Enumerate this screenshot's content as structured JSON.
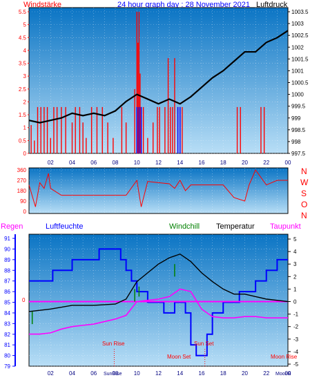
{
  "header": {
    "left_label": "Windstärke",
    "title": "24 hour graph day : 28 November 2021",
    "right_label": "Luftdruck"
  },
  "x_ticks": [
    "02",
    "04",
    "06",
    "08",
    "10",
    "12",
    "14",
    "16",
    "18",
    "20",
    "22",
    "00"
  ],
  "x_ticks_bottom": [
    "02",
    "04",
    "06",
    "08",
    "10",
    "12",
    "14",
    "16",
    "18",
    "20",
    "22",
    "00"
  ],
  "wind_dir_labels": [
    "N",
    "W",
    "S",
    "O",
    "N"
  ],
  "bottom_header": {
    "regen": "Regen",
    "luftfeuchte": "Luftfeuchte",
    "windchill": "Windchill",
    "temperatur": "Temperatur",
    "taupunkt": "Taupunkt"
  },
  "astro": {
    "sun_rise": "Sun Rise",
    "sun_set": "Sun Set",
    "moon_set": "Moon Set",
    "moon_rise": "Moon Rise",
    "sun_rise_time": "SunRise",
    "moon_tick": "MoonR",
    "rain_zero": "0"
  },
  "colors": {
    "plot_top": "#0a78c8",
    "plot_bottom": "#a9d6f2",
    "wind_bar": "#ff0000",
    "wind_gust": "#0000ff",
    "pressure": "#000000",
    "humidity": "#0000ff",
    "temperature": "#000000",
    "dewpoint": "#ff00ff",
    "windchill": "#008000",
    "axis_red": "#ff0000",
    "axis_blue": "#0000ff"
  },
  "chart_data": [
    {
      "type": "line",
      "title": "24 hour graph day : 28 November 2021",
      "xlabel": "",
      "x_range_hours": [
        0,
        24
      ],
      "series": [
        {
          "name": "Windstärke",
          "type": "bar",
          "axis": "left",
          "x": [
            0.2,
            0.5,
            0.8,
            1.1,
            1.4,
            1.7,
            2.0,
            2.3,
            2.6,
            3.0,
            3.4,
            4.0,
            4.3,
            4.7,
            5.0,
            5.3,
            5.8,
            6.3,
            6.8,
            7.3,
            7.8,
            8.6,
            9.0,
            9.8,
            10.0,
            10.1,
            10.2,
            10.3,
            10.4,
            10.6,
            11.0,
            11.5,
            11.9,
            12.1,
            12.6,
            12.9,
            13.1,
            13.3,
            13.5,
            13.8,
            14.0,
            14.2,
            19.3,
            19.6,
            21.5,
            21.8
          ],
          "y": [
            1.1,
            0.5,
            1.8,
            1.8,
            1.8,
            1.8,
            0.6,
            1.8,
            1.8,
            1.8,
            1.8,
            1.2,
            1.8,
            1.8,
            1.2,
            0.6,
            1.8,
            1.8,
            1.8,
            1.2,
            0.6,
            1.8,
            1.2,
            2.5,
            5.5,
            4.3,
            5.5,
            3.1,
            1.8,
            1.8,
            0.6,
            1.2,
            1.8,
            1.8,
            1.8,
            3.7,
            1.8,
            1.8,
            3.7,
            1.8,
            1.8,
            1.8,
            1.8,
            1.8,
            1.8,
            1.8
          ],
          "ylim": [
            0,
            5.5
          ]
        },
        {
          "name": "Luftdruck",
          "axis": "right",
          "x": [
            0,
            1,
            2,
            3,
            4,
            5,
            6,
            7,
            8,
            9,
            10,
            11,
            12,
            13,
            14,
            15,
            16,
            17,
            18,
            19,
            20,
            21,
            22,
            23,
            24
          ],
          "y": [
            998.9,
            998.8,
            998.9,
            999.0,
            999.2,
            999.1,
            999.2,
            999.1,
            999.3,
            999.7,
            1000.0,
            999.8,
            999.6,
            999.8,
            999.6,
            999.9,
            1000.3,
            1000.7,
            1001.0,
            1001.4,
            1001.8,
            1001.8,
            1002.2,
            1002.4,
            1002.7
          ],
          "ylim": [
            997.5,
            1003.5
          ]
        }
      ],
      "yticks_left": [
        "0",
        "0.5",
        "1",
        "1.5",
        "2",
        "2.5",
        "3",
        "3.5",
        "4",
        "4.5",
        "5",
        "5.5"
      ],
      "yticks_right": [
        "997.5",
        "998",
        "998.5",
        "999",
        "999.5",
        "1000",
        "1000.5",
        "1001",
        "1001.5",
        "1002",
        "1002.5",
        "1003",
        "1003.5"
      ]
    },
    {
      "type": "line",
      "title": "",
      "series": [
        {
          "name": "",
          "x": [
            0,
            0.6,
            1.0,
            1.4,
            1.8,
            2.0,
            3.0,
            4.0,
            5.0,
            6.0,
            7.0,
            8.0,
            9.0,
            10.0,
            10.4,
            11.0,
            12.0,
            13.0,
            13.5,
            14.0,
            14.5,
            15.0,
            16.0,
            17.0,
            18.0,
            19.0,
            20.0,
            20.4,
            21.0,
            22.0,
            23.0,
            24.0
          ],
          "y": [
            230,
            40,
            250,
            200,
            330,
            200,
            140,
            140,
            140,
            140,
            140,
            140,
            140,
            270,
            40,
            260,
            250,
            240,
            200,
            270,
            180,
            230,
            230,
            230,
            230,
            120,
            90,
            230,
            360,
            230,
            270,
            270
          ]
        }
      ],
      "yticks": [
        "0",
        "90",
        "180",
        "270",
        "360"
      ],
      "ylim": [
        0,
        360
      ]
    },
    {
      "type": "line",
      "title": "",
      "series": [
        {
          "name": "Luftfeuchte",
          "axis": "left",
          "x": [
            0,
            2.2,
            2.2,
            4.0,
            4.0,
            6.5,
            6.5,
            8.5,
            8.5,
            9.0,
            9.0,
            9.5,
            9.5,
            10.0,
            10.0,
            11.0,
            11.0,
            12.5,
            12.5,
            13.5,
            13.5,
            14.5,
            14.5,
            15.0,
            15.0,
            15.5,
            15.5,
            16.5,
            16.5,
            17.0,
            17.0,
            18.0,
            18.0,
            19.5,
            19.5,
            21.0,
            21.0,
            22.0,
            22.0,
            23.0,
            23.0,
            24.0
          ],
          "y": [
            87,
            87,
            88,
            88,
            89,
            89,
            90,
            90,
            89,
            89,
            88,
            88,
            87,
            87,
            86,
            86,
            85,
            85,
            84,
            84,
            85,
            85,
            84,
            84,
            81,
            81,
            80,
            80,
            82,
            82,
            84,
            84,
            85,
            85,
            86,
            86,
            87,
            87,
            88,
            88,
            89,
            89
          ],
          "ylim": [
            79,
            91
          ]
        },
        {
          "name": "Temperatur",
          "axis": "right",
          "x": [
            0,
            2,
            4,
            6,
            8,
            9,
            10,
            11,
            12,
            13,
            14,
            15,
            16,
            17,
            18,
            19,
            20,
            21,
            22,
            23,
            24
          ],
          "y": [
            -0.8,
            -0.6,
            -0.3,
            -0.3,
            -0.2,
            0.2,
            1.6,
            2.3,
            3.0,
            3.5,
            3.8,
            3.2,
            2.3,
            1.6,
            1.0,
            0.6,
            0.6,
            0.4,
            0.2,
            0.1,
            0.0
          ],
          "ylim": [
            -5,
            5
          ]
        },
        {
          "name": "Taupunkt",
          "axis": "right",
          "x": [
            0,
            1,
            2,
            3,
            4,
            5,
            6,
            7,
            8,
            9,
            10,
            11,
            12,
            13,
            14,
            15,
            16,
            17,
            18,
            19,
            20,
            21,
            22,
            23,
            24
          ],
          "y": [
            -2.6,
            -2.6,
            -2.5,
            -2.2,
            -2.0,
            -1.9,
            -1.8,
            -1.6,
            -1.4,
            -1.1,
            0.0,
            0.1,
            0.2,
            0.4,
            1.0,
            0.8,
            -0.6,
            -1.2,
            -1.3,
            -1.3,
            -1.2,
            -1.2,
            -1.3,
            -1.3,
            -1.3
          ],
          "ylim": [
            -5,
            5
          ]
        },
        {
          "name": "Windchill",
          "axis": "right",
          "x": [
            0.3,
            0.3,
            9.8,
            9.8,
            10.2,
            10.2,
            13.5,
            13.5
          ],
          "y": [
            -0.8,
            -1.8,
            1.0,
            0.0,
            1.2,
            0.4,
            3.0,
            2.0
          ],
          "ylim": [
            -5,
            5
          ]
        },
        {
          "name": "Regen",
          "axis": "rain",
          "x": [
            0,
            24
          ],
          "y": [
            0,
            0
          ]
        }
      ],
      "yticks_left": [
        "79",
        "80",
        "81",
        "82",
        "83",
        "84",
        "85",
        "86",
        "87",
        "88",
        "89",
        "90",
        "91"
      ],
      "yticks_right": [
        "-5",
        "-4",
        "-3",
        "-2",
        "-1",
        "0",
        "1",
        "2",
        "3",
        "4",
        "5"
      ],
      "markers": [
        {
          "label": "Sun Rise",
          "x": 7.9
        },
        {
          "label": "Sun Set",
          "x": 16.3
        },
        {
          "label": "Moon Set",
          "x": 16.3
        },
        {
          "label": "Moon Rise",
          "x": 23.8
        }
      ]
    }
  ]
}
